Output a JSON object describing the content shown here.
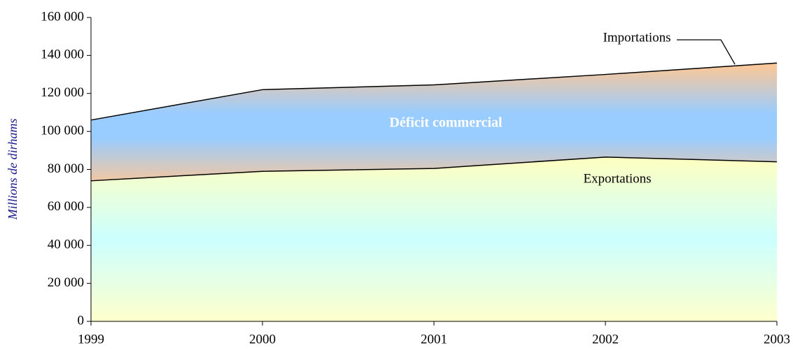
{
  "chart_data": {
    "type": "area",
    "annotation": "Déficit commercial",
    "ylabel": "Millions de dirhams",
    "x": [
      1999,
      2000,
      2001,
      2002,
      2003
    ],
    "xlim": [
      1999,
      2003
    ],
    "xticks": [
      1999,
      2000,
      2001,
      2002,
      2003
    ],
    "series": [
      {
        "name": "Importations",
        "color": "#000000",
        "values": [
          106000,
          122000,
          124500,
          130000,
          136000
        ]
      },
      {
        "name": "Exportations",
        "color": "#000000",
        "values": [
          74000,
          79000,
          80500,
          86500,
          84000
        ]
      }
    ],
    "ylim": [
      0,
      160000
    ],
    "yticks": [
      0,
      {
        "value": 20000,
        "label": "20 000"
      },
      {
        "value": 40000,
        "label": "40 000"
      },
      {
        "value": 60000,
        "label": "60 000"
      },
      {
        "value": 80000,
        "label": "80 000"
      },
      {
        "value": 100000,
        "label": "100 000"
      },
      {
        "value": 120000,
        "label": "120 000"
      },
      {
        "value": 140000,
        "label": "140 000"
      },
      {
        "value": 160000,
        "label": "160 000"
      }
    ]
  }
}
